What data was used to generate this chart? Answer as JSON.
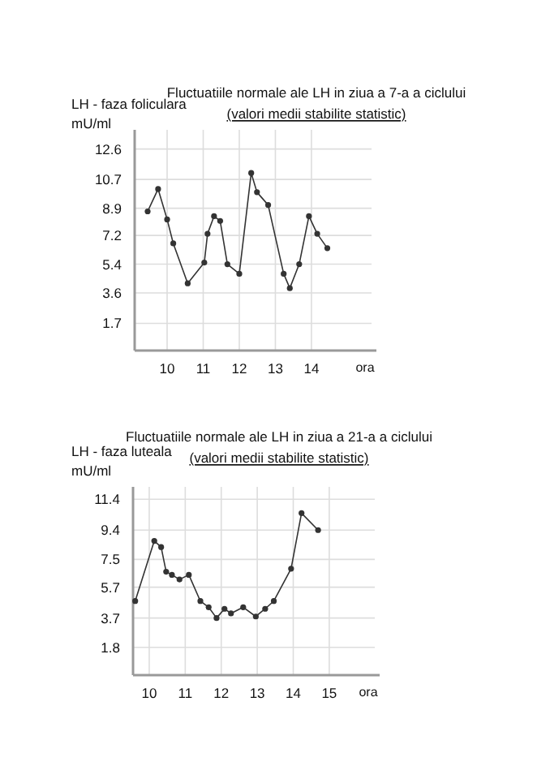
{
  "chart_data": [
    {
      "type": "line",
      "title": "Fluctuatiile normale ale LH in ziua a 7-a a ciclului",
      "subtitle": "(valori medii stabilite statistic)",
      "ylabel": "LH - faza foliculara\nmU/ml",
      "xlabel": "ora",
      "xlim": [
        9.1,
        15.8
      ],
      "xticks": [
        10,
        11,
        12,
        13,
        14
      ],
      "ylim": [
        0,
        13.8
      ],
      "yticks": [
        12.6,
        10.7,
        8.9,
        7.2,
        5.4,
        3.6,
        1.7
      ],
      "grid": true,
      "marker": "circle",
      "line_style": "solid",
      "series": [
        {
          "color": "#333333",
          "x": [
            9.46,
            9.75,
            10.0,
            10.17,
            10.57,
            11.03,
            11.12,
            11.3,
            11.47,
            11.67,
            12.0,
            12.33,
            12.49,
            12.8,
            13.23,
            13.4,
            13.66,
            13.93,
            14.16,
            14.44
          ],
          "values": [
            8.7,
            10.1,
            8.2,
            6.7,
            4.2,
            5.5,
            7.3,
            8.4,
            8.1,
            5.4,
            4.8,
            11.1,
            9.9,
            9.1,
            4.8,
            3.9,
            5.4,
            8.4,
            7.3,
            6.4
          ]
        }
      ]
    },
    {
      "type": "line",
      "title": "Fluctuatiile normale ale LH in ziua a 21-a a ciclului",
      "subtitle": "(valori medii stabilite statistic)",
      "ylabel": "LH - faza luteala\nmU/ml",
      "xlabel": "ora",
      "xlim": [
        9.55,
        16.4
      ],
      "xticks": [
        10,
        11,
        12,
        13,
        14,
        15
      ],
      "ylim": [
        0,
        12.2
      ],
      "yticks": [
        11.4,
        9.4,
        7.5,
        5.7,
        3.7,
        1.8
      ],
      "grid": true,
      "marker": "circle",
      "line_style": "solid",
      "series": [
        {
          "color": "#333333",
          "x": [
            9.61,
            10.14,
            10.33,
            10.47,
            10.63,
            10.84,
            11.1,
            11.42,
            11.65,
            11.87,
            12.09,
            12.27,
            12.61,
            12.96,
            13.22,
            13.46,
            13.94,
            14.23,
            14.69
          ],
          "values": [
            4.8,
            8.7,
            8.3,
            6.7,
            6.5,
            6.2,
            6.5,
            4.8,
            4.4,
            3.7,
            4.3,
            4.0,
            4.4,
            3.8,
            4.3,
            4.8,
            6.9,
            10.5,
            9.4
          ]
        }
      ]
    }
  ]
}
